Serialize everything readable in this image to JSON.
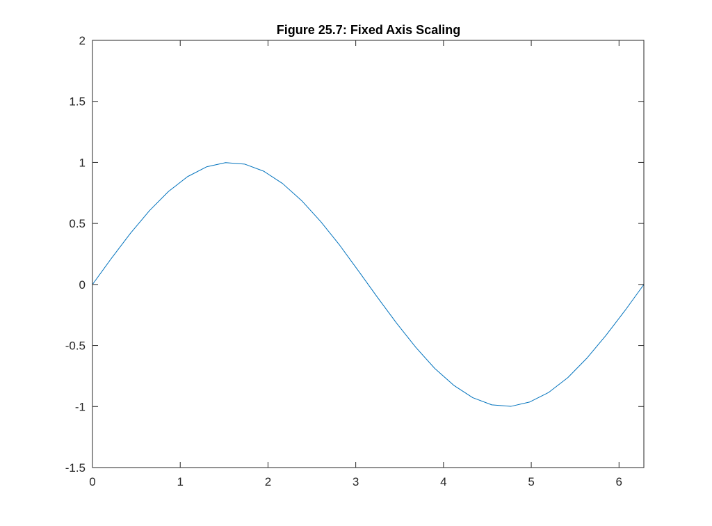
{
  "chart_data": {
    "type": "line",
    "title": "Figure 25.7: Fixed Axis Scaling",
    "xlabel": "",
    "ylabel": "",
    "xlim": [
      0,
      6.283
    ],
    "ylim": [
      -1.5,
      2
    ],
    "grid": false,
    "box": true,
    "xticks": [
      0,
      1,
      2,
      3,
      4,
      5,
      6
    ],
    "xtick_labels": [
      "0",
      "1",
      "2",
      "3",
      "4",
      "5",
      "6"
    ],
    "yticks": [
      -1.5,
      -1,
      -0.5,
      0,
      0.5,
      1,
      1.5,
      2
    ],
    "ytick_labels": [
      "-1.5",
      "-1",
      "-0.5",
      "0",
      "0.5",
      "1",
      "1.5",
      "2"
    ],
    "series": [
      {
        "color": "#0072BD",
        "x": [
          0.0,
          0.2167,
          0.4333,
          0.65,
          0.8666,
          1.0833,
          1.3,
          1.5166,
          1.7333,
          1.9499,
          2.1666,
          2.3833,
          2.5999,
          2.8166,
          3.0332,
          3.2499,
          3.4666,
          3.6832,
          3.8999,
          4.1166,
          4.3332,
          4.5499,
          4.7665,
          4.9832,
          5.1999,
          5.4165,
          5.6332,
          5.8499,
          6.0665,
          6.2832
        ],
        "y": [
          0.0,
          0.215,
          0.4199,
          0.6052,
          0.7622,
          0.8834,
          0.9637,
          0.9983,
          0.9863,
          0.9285,
          0.8268,
          0.6871,
          0.5163,
          0.322,
          0.1084,
          -0.1081,
          -0.3185,
          -0.5144,
          -0.6878,
          -0.8262,
          -0.9275,
          -0.9862,
          -0.9987,
          -0.9626,
          -0.8838,
          -0.7634,
          -0.6044,
          -0.418,
          -0.2152,
          0.0
        ]
      }
    ]
  }
}
